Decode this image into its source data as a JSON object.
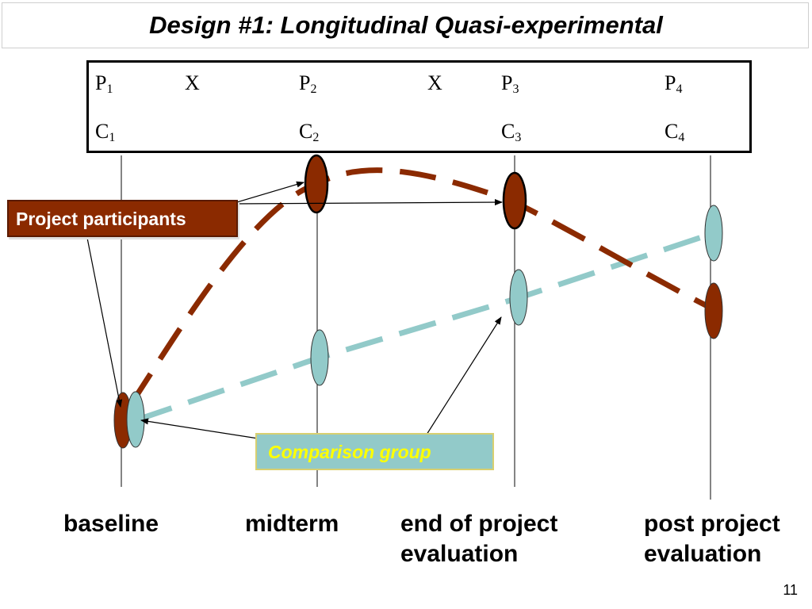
{
  "title": "Design #1: Longitudinal Quasi-experimental",
  "notation": {
    "project_row": [
      {
        "letter": "P",
        "sub": "1"
      },
      {
        "letter": "X",
        "sub": ""
      },
      {
        "letter": "P",
        "sub": "2"
      },
      {
        "letter": "X",
        "sub": ""
      },
      {
        "letter": "P",
        "sub": "3"
      },
      {
        "letter": "P",
        "sub": "4"
      }
    ],
    "comparison_row": [
      {
        "letter": "C",
        "sub": "1"
      },
      {
        "letter": "C",
        "sub": "2"
      },
      {
        "letter": "C",
        "sub": "3"
      },
      {
        "letter": "C",
        "sub": "4"
      }
    ]
  },
  "callouts": {
    "participants": "Project participants",
    "comparison": "Comparison group"
  },
  "stages": [
    {
      "line1": "baseline",
      "line2": ""
    },
    {
      "line1": "midterm",
      "line2": ""
    },
    {
      "line1": "end of project",
      "line2": "evaluation"
    },
    {
      "line1": "post project",
      "line2": "evaluation"
    }
  ],
  "colors": {
    "participants": "#8b2a00",
    "comparison": "#92cac9",
    "comparison_text": "#ffff00"
  },
  "slide_number": "11"
}
